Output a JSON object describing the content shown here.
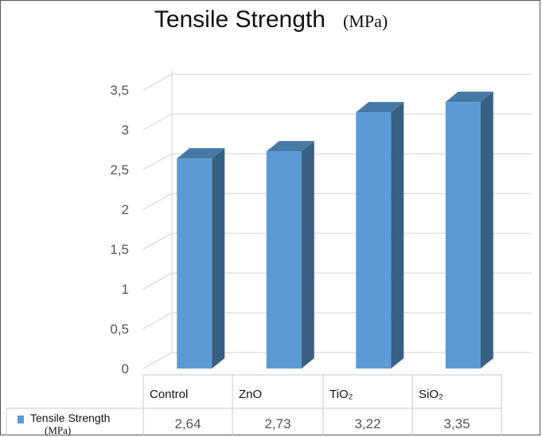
{
  "chart_data": {
    "type": "bar",
    "title": "Tensile Strength",
    "title_unit": "(MPa)",
    "categories": [
      "Control",
      "ZnO",
      "TiO₂",
      "SiO₂"
    ],
    "series": [
      {
        "name": "Tensile Strength",
        "name_unit": "(MPa)",
        "values": [
          2.64,
          2.73,
          3.22,
          3.35
        ],
        "value_labels": [
          "2,64",
          "2,73",
          "3,22",
          "3,35"
        ],
        "color": "#5b9bd5"
      }
    ],
    "yticks": [
      "0",
      "0,5",
      "1",
      "1,5",
      "2",
      "2,5",
      "3",
      "3,5"
    ],
    "ylim": [
      0,
      3.5
    ],
    "grid": true,
    "style": "3d-column",
    "legend": "data-table-bottom"
  }
}
